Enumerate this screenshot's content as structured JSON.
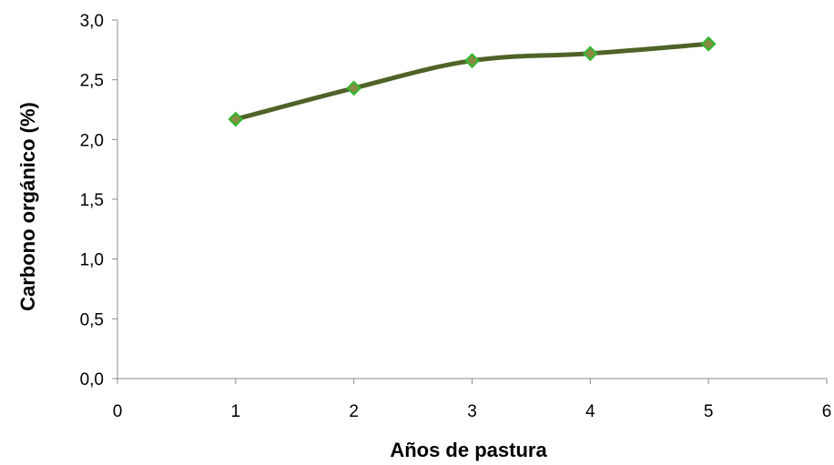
{
  "chart_data": {
    "type": "line",
    "title": "",
    "xlabel": "Años de pastura",
    "ylabel": "Carbono orgánico (%)",
    "xlim": [
      0,
      6
    ],
    "ylim": [
      0,
      3
    ],
    "x_ticks": [
      "0",
      "1",
      "2",
      "3",
      "4",
      "5",
      "6"
    ],
    "y_ticks": [
      "0,0",
      "0,5",
      "1,0",
      "1,5",
      "2,0",
      "2,5",
      "3,0"
    ],
    "grid": false,
    "legend": "none",
    "series": [
      {
        "x": [
          1,
          2,
          3,
          4,
          5
        ],
        "values": [
          2.17,
          2.43,
          2.66,
          2.72,
          2.8
        ],
        "line_color": "#4f6228",
        "marker": "diamond",
        "marker_fill": "#8a8a45",
        "marker_edge": "#2eb82e"
      }
    ]
  }
}
